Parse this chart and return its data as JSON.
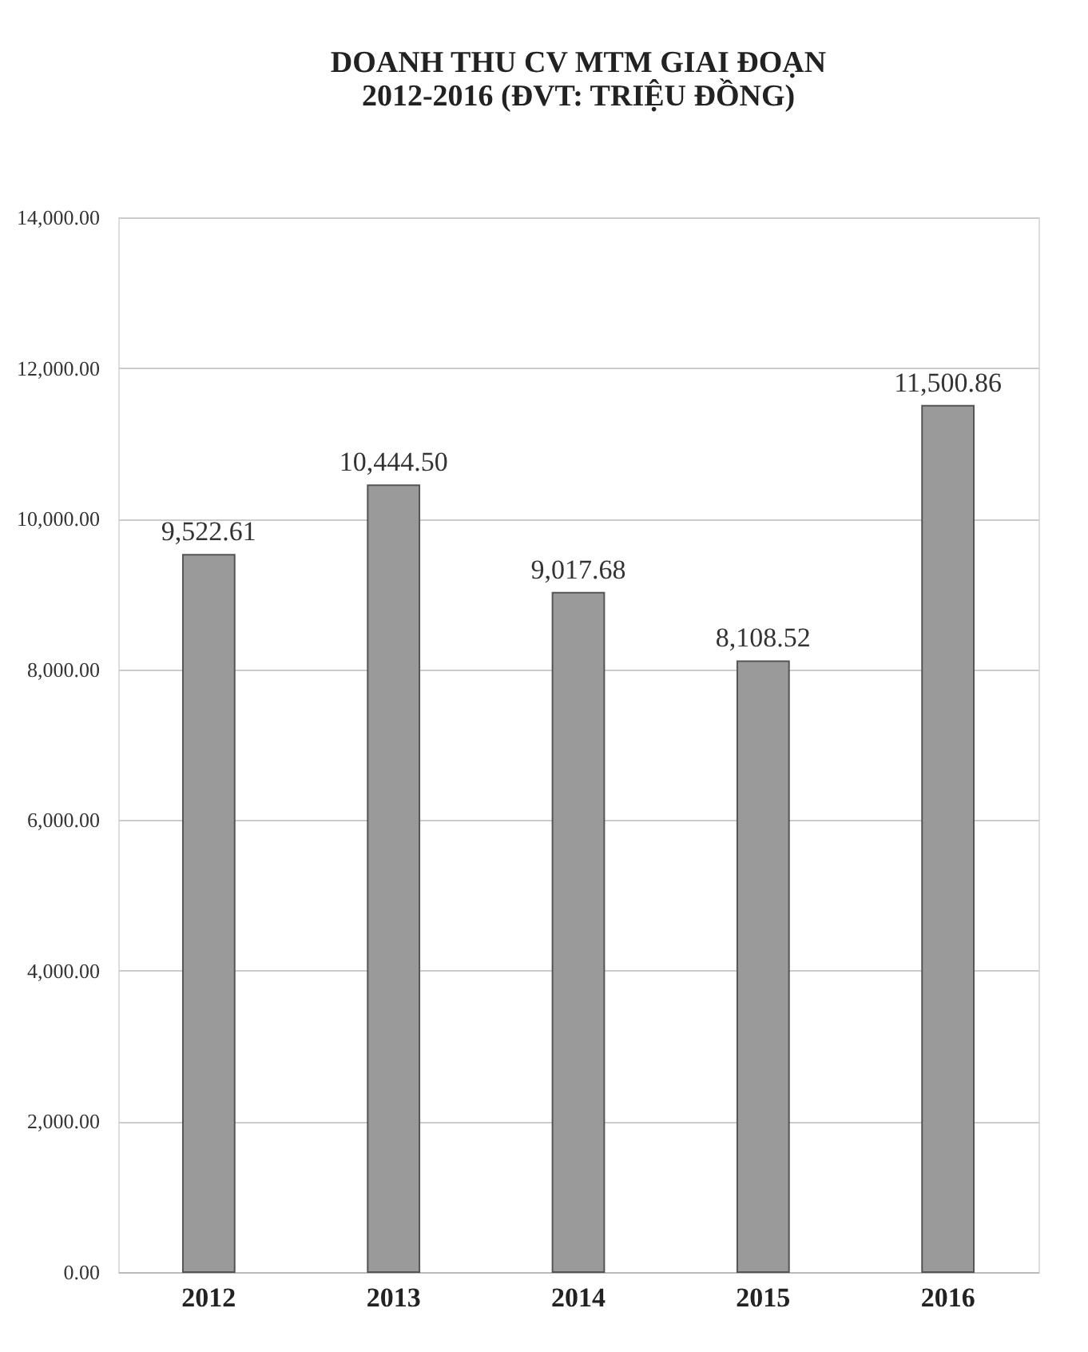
{
  "chart_data": {
    "type": "bar",
    "title": "DOANH THU CV MTM GIAI ĐOẠN\n2012-2016 (ĐVT: TRIỆU ĐỒNG)",
    "categories": [
      "2012",
      "2013",
      "2014",
      "2015",
      "2016"
    ],
    "values": [
      9522.61,
      10444.5,
      9017.68,
      8108.52,
      11500.86
    ],
    "value_labels": [
      "9,522.61",
      "10,444.50",
      "9,017.68",
      "8,108.52",
      "11,500.86"
    ],
    "color": "#9a9a9a",
    "ylim": [
      0,
      14000
    ],
    "yticks": [
      {
        "value": 0,
        "label": "0.00"
      },
      {
        "value": 2000,
        "label": "2,000.00"
      },
      {
        "value": 4000,
        "label": "4,000.00"
      },
      {
        "value": 6000,
        "label": "6,000.00"
      },
      {
        "value": 8000,
        "label": "8,000.00"
      },
      {
        "value": 10000,
        "label": "10,000.00"
      },
      {
        "value": 12000,
        "label": "12,000.00"
      },
      {
        "value": 14000,
        "label": "14,000.00"
      }
    ],
    "grid": "y"
  }
}
